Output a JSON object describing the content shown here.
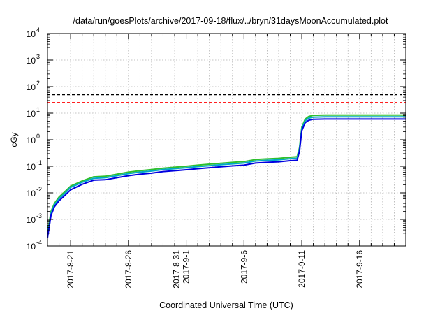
{
  "chart_data": {
    "type": "line",
    "title": "/data/run/goesPlots/archive/2017-09-18/flux/../bryn/31daysMoonAccumulated.plot",
    "xlabel": "Coordinated Universal Time (UTC)",
    "ylabel": "cGy",
    "yscale": "log",
    "ylim_exp": [
      -4,
      4
    ],
    "xlim_days": [
      0,
      31
    ],
    "grid": true,
    "y_ticks": [
      {
        "base": "10",
        "exp": "-4",
        "value_exp": -4
      },
      {
        "base": "10",
        "exp": "-3",
        "value_exp": -3
      },
      {
        "base": "10",
        "exp": "-2",
        "value_exp": -2
      },
      {
        "base": "10",
        "exp": "-1",
        "value_exp": -1
      },
      {
        "base": "10",
        "exp": "0",
        "value_exp": 0
      },
      {
        "base": "10",
        "exp": "1",
        "value_exp": 1
      },
      {
        "base": "10",
        "exp": "2",
        "value_exp": 2
      },
      {
        "base": "10",
        "exp": "3",
        "value_exp": 3
      },
      {
        "base": "10",
        "exp": "4",
        "value_exp": 4
      }
    ],
    "x_ticks": [
      {
        "lines": [
          "2017-8-21"
        ],
        "day": 2
      },
      {
        "lines": [
          "2017-8-26"
        ],
        "day": 7
      },
      {
        "lines": [
          "2017-8-31",
          "2017-9-1"
        ],
        "day": 12
      },
      {
        "lines": [
          "2017-9-6"
        ],
        "day": 17
      },
      {
        "lines": [
          "2017-9-11"
        ],
        "day": 22
      },
      {
        "lines": [
          "2017-9-16"
        ],
        "day": 27
      }
    ],
    "reference_lines": [
      {
        "value": 50,
        "color": "#000000",
        "dash": "dashed"
      },
      {
        "value": 25,
        "color": "#ff0000",
        "dash": "dashed"
      }
    ],
    "series": [
      {
        "color": "#2fbf2f",
        "x": [
          0,
          0.3,
          0.6,
          1,
          1.5,
          2,
          3,
          4,
          5,
          6,
          7,
          8,
          9,
          10,
          11,
          12,
          13,
          14,
          15,
          16,
          17,
          18,
          19,
          20,
          21,
          21.6,
          21.8,
          22,
          22.3,
          22.6,
          23,
          24,
          25,
          26,
          27,
          28,
          29,
          30,
          31
        ],
        "y": [
          0.0003,
          0.002,
          0.004,
          0.007,
          0.011,
          0.018,
          0.028,
          0.04,
          0.042,
          0.05,
          0.06,
          0.068,
          0.075,
          0.085,
          0.092,
          0.1,
          0.11,
          0.12,
          0.13,
          0.14,
          0.15,
          0.18,
          0.19,
          0.2,
          0.22,
          0.23,
          0.5,
          3.0,
          6.0,
          7.5,
          8.3,
          8.5,
          8.5,
          8.5,
          8.5,
          8.5,
          8.5,
          8.5,
          8.5
        ]
      },
      {
        "color": "#00a8c8",
        "x": [
          0,
          0.3,
          0.6,
          1,
          1.5,
          2,
          3,
          4,
          5,
          6,
          7,
          8,
          9,
          10,
          11,
          12,
          13,
          14,
          15,
          16,
          17,
          18,
          19,
          20,
          21,
          21.6,
          21.8,
          22,
          22.3,
          22.6,
          23,
          24,
          25,
          26,
          27,
          28,
          29,
          30,
          31
        ],
        "y": [
          0.00025,
          0.0017,
          0.0035,
          0.006,
          0.0095,
          0.016,
          0.025,
          0.035,
          0.037,
          0.044,
          0.053,
          0.06,
          0.066,
          0.075,
          0.081,
          0.088,
          0.097,
          0.105,
          0.114,
          0.123,
          0.132,
          0.158,
          0.167,
          0.176,
          0.194,
          0.2,
          0.44,
          2.6,
          5.2,
          6.5,
          7.1,
          7.3,
          7.3,
          7.3,
          7.3,
          7.3,
          7.3,
          7.3,
          7.3
        ]
      },
      {
        "color": "#0000e0",
        "x": [
          0,
          0.3,
          0.6,
          1,
          1.5,
          2,
          3,
          4,
          5,
          6,
          7,
          8,
          9,
          10,
          11,
          12,
          13,
          14,
          15,
          16,
          17,
          18,
          19,
          20,
          21,
          21.6,
          21.8,
          22,
          22.3,
          22.6,
          23,
          24,
          25,
          26,
          27,
          28,
          29,
          30,
          31
        ],
        "y": [
          0.0002,
          0.0014,
          0.003,
          0.005,
          0.008,
          0.013,
          0.021,
          0.03,
          0.031,
          0.037,
          0.044,
          0.05,
          0.055,
          0.063,
          0.068,
          0.074,
          0.081,
          0.088,
          0.095,
          0.103,
          0.11,
          0.132,
          0.14,
          0.147,
          0.162,
          0.168,
          0.37,
          2.2,
          4.4,
          5.4,
          5.9,
          6.0,
          6.0,
          6.0,
          6.0,
          6.0,
          6.0,
          6.0,
          6.0
        ]
      }
    ]
  }
}
